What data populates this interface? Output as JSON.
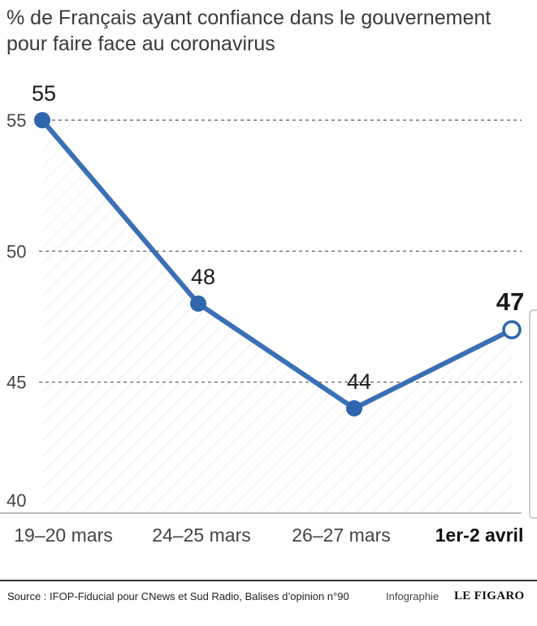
{
  "title_lines": [
    "% de Français ayant confiance dans le gouvernement",
    "pour faire face au coronavirus"
  ],
  "chart_data": {
    "type": "line",
    "title": "% de Français ayant confiance dans le gouvernement pour faire face au coronavirus",
    "categories": [
      "19–20 mars",
      "24–25 mars",
      "26–27 mars",
      "1er-2 avril"
    ],
    "values": [
      55,
      48,
      44,
      47
    ],
    "data_labels": [
      "55",
      "48",
      "44",
      "47"
    ],
    "highlighted_category": "1er-2 avril",
    "ylim": [
      40,
      56
    ],
    "yticks": [
      "40",
      "45",
      "50",
      "55"
    ],
    "grid": "dashed horizontal lines",
    "xlabel": "",
    "ylabel": "",
    "colors": {
      "line": "#3b6fb6",
      "marker": "#2f65ad",
      "grid": "#555555",
      "hatch": "#e6e6e6"
    }
  },
  "footer": {
    "source": "Source : IFOP-Fiducial pour CNews et Sud Radio, Balises d’opinion n°90",
    "infographie": "Infographie",
    "brand": "LE FIGARO"
  }
}
